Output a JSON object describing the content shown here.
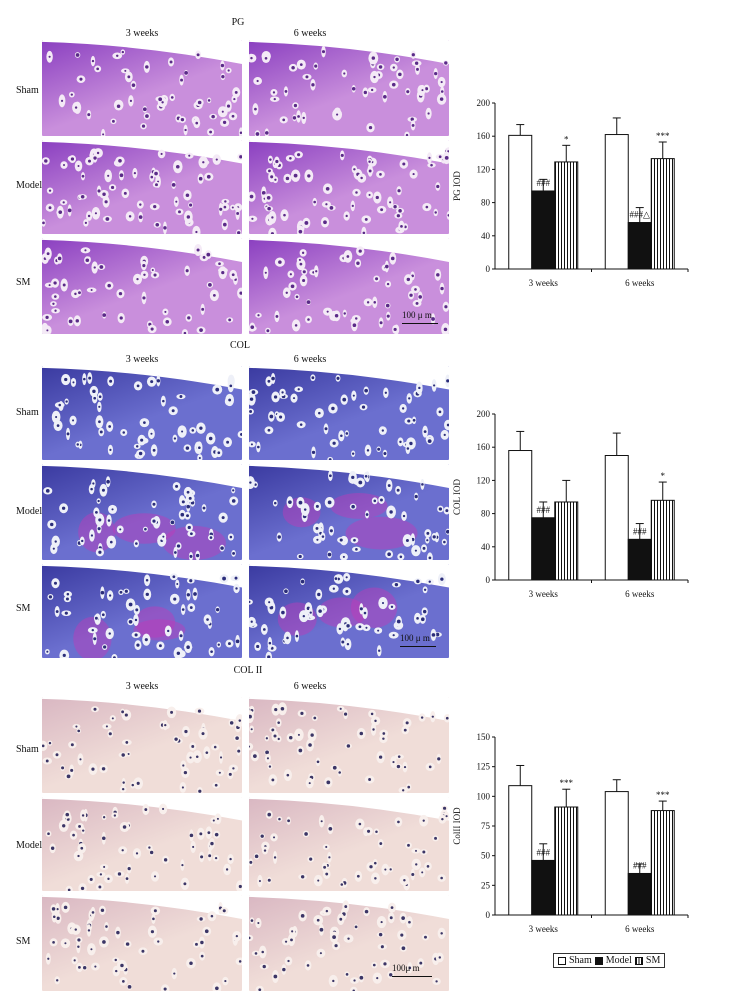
{
  "sections": [
    {
      "title": "PG",
      "columns": [
        "3 weeks",
        "6 weeks"
      ],
      "rows": [
        "Sham",
        "Model",
        "SM"
      ],
      "scale_label": "100 μ m",
      "stain": {
        "bg": "#c98fdc",
        "deep": "#8a3fc0",
        "cell": "#f4eaf6",
        "nucleus": "#5a2a88"
      }
    },
    {
      "title": "COL",
      "columns": [
        "3 weeks",
        "6 weeks"
      ],
      "rows": [
        "Sham",
        "Model",
        "SM"
      ],
      "scale_label": "100 μ m",
      "stain": {
        "bg": "#6b6fcf",
        "deep": "#3a3aa0",
        "cell": "#eef0f8",
        "nucleus": "#2b2d7a",
        "accent": "#c23ab8"
      }
    },
    {
      "title": "COL II",
      "columns": [
        "3 weeks",
        "6 weeks"
      ],
      "rows": [
        "Sham",
        "Model",
        "SM"
      ],
      "scale_label": "100μ m",
      "stain": {
        "bg": "#f0ddd8",
        "deep": "#d9b7c2",
        "cell": "#f8efec",
        "nucleus": "#3b3566"
      }
    }
  ],
  "chart_data": [
    {
      "type": "bar",
      "title": "",
      "ylabel": "PG IOD",
      "xlabel": "",
      "categories": [
        "3 weeks",
        "6 weeks"
      ],
      "ylim": [
        0,
        200
      ],
      "yticks": [
        0,
        40,
        80,
        120,
        160,
        200
      ],
      "series": [
        {
          "name": "Sham",
          "values": [
            161,
            162
          ],
          "errors": [
            13,
            20
          ],
          "fill": "white"
        },
        {
          "name": "Model",
          "values": [
            94,
            56
          ],
          "errors": [
            14,
            18
          ],
          "fill": "black"
        },
        {
          "name": "SM",
          "values": [
            129,
            133
          ],
          "errors": [
            20,
            20
          ],
          "fill": "stripe"
        }
      ],
      "annotations": [
        {
          "category": 0,
          "series": 1,
          "text": "###"
        },
        {
          "category": 0,
          "series": 2,
          "text": "*"
        },
        {
          "category": 1,
          "series": 1,
          "text": "###△"
        },
        {
          "category": 1,
          "series": 2,
          "text": "***"
        }
      ]
    },
    {
      "type": "bar",
      "title": "",
      "ylabel": "COL IOD",
      "xlabel": "",
      "categories": [
        "3 weeks",
        "6 weeks"
      ],
      "ylim": [
        0,
        200
      ],
      "yticks": [
        0,
        40,
        80,
        120,
        160,
        200
      ],
      "series": [
        {
          "name": "Sham",
          "values": [
            156,
            150
          ],
          "errors": [
            23,
            27
          ],
          "fill": "white"
        },
        {
          "name": "Model",
          "values": [
            75,
            49
          ],
          "errors": [
            19,
            19
          ],
          "fill": "black"
        },
        {
          "name": "SM",
          "values": [
            94,
            96
          ],
          "errors": [
            26,
            22
          ],
          "fill": "stripe"
        }
      ],
      "annotations": [
        {
          "category": 0,
          "series": 1,
          "text": "###"
        },
        {
          "category": 1,
          "series": 1,
          "text": "###"
        },
        {
          "category": 1,
          "series": 2,
          "text": "*"
        }
      ]
    },
    {
      "type": "bar",
      "title": "",
      "ylabel": "ColII IOD",
      "xlabel": "",
      "categories": [
        "3 weeks",
        "6 weeks"
      ],
      "ylim": [
        0,
        150
      ],
      "yticks": [
        0,
        25,
        50,
        75,
        100,
        125,
        150
      ],
      "series": [
        {
          "name": "Sham",
          "values": [
            109,
            104
          ],
          "errors": [
            17,
            10
          ],
          "fill": "white"
        },
        {
          "name": "Model",
          "values": [
            46,
            35
          ],
          "errors": [
            14,
            8
          ],
          "fill": "black"
        },
        {
          "name": "SM",
          "values": [
            91,
            88
          ],
          "errors": [
            15,
            8
          ],
          "fill": "stripe"
        }
      ],
      "annotations": [
        {
          "category": 0,
          "series": 1,
          "text": "###"
        },
        {
          "category": 0,
          "series": 2,
          "text": "***"
        },
        {
          "category": 1,
          "series": 1,
          "text": "###"
        },
        {
          "category": 1,
          "series": 2,
          "text": "***"
        }
      ]
    }
  ],
  "legend": [
    "Sham",
    "Model",
    "SM"
  ]
}
